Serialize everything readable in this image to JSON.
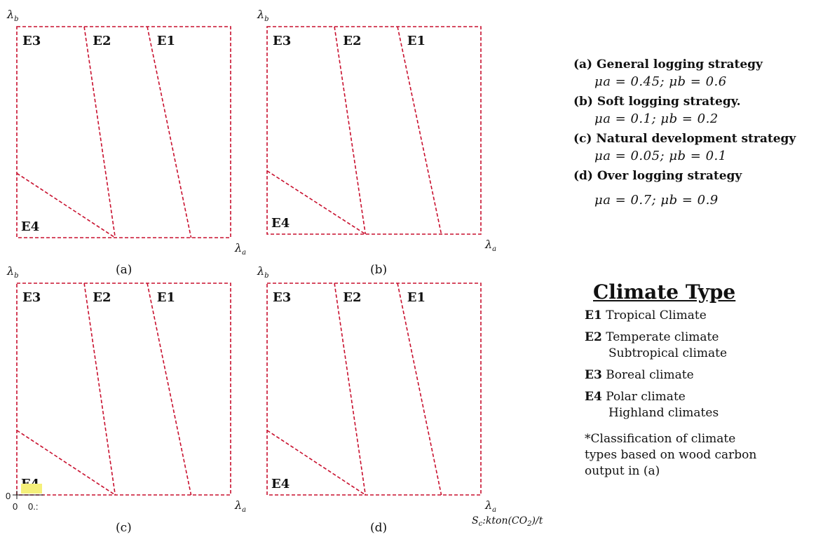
{
  "axes": {
    "x_label": "λ",
    "x_sub": "a",
    "y_label": "λ",
    "y_sub": "b"
  },
  "regions": [
    "E1",
    "E2",
    "E3",
    "E4"
  ],
  "panels": [
    {
      "caption": "(a)"
    },
    {
      "caption": "(b)"
    },
    {
      "caption": "(c)"
    },
    {
      "caption": "(d)"
    }
  ],
  "overlay": {
    "tick_y": "0",
    "tick_x0": "0",
    "tick_x1": "0.:",
    "unit_label": "S_c:kton(CO_2)/t"
  },
  "strategies": [
    {
      "title": "(a) General logging strategy",
      "params": "μa = 0.45; μb = 0.6"
    },
    {
      "title": "(b) Soft logging strategy.",
      "params": "μa = 0.1; μb = 0.2"
    },
    {
      "title": "(c) Natural development strategy",
      "params": "μa = 0.05; μb = 0.1"
    },
    {
      "title": "(d) Over logging strategy",
      "params": "μa = 0.7; μb = 0.9"
    }
  ],
  "climate": {
    "title": "Climate Type",
    "items": [
      {
        "code": "E1",
        "line1": "Tropical Climate",
        "line2": ""
      },
      {
        "code": "E2",
        "line1": "Temperate climate",
        "line2": "Subtropical climate"
      },
      {
        "code": "E3",
        "line1": "Boreal climate",
        "line2": ""
      },
      {
        "code": "E4",
        "line1": "Polar climate",
        "line2": "Highland climates"
      }
    ],
    "note_line1": "*Classification of climate",
    "note_line2": "types based on wood carbon",
    "note_line3": "output in (a)"
  },
  "colors": {
    "boundary": "#c8102e",
    "highlight": "#f5f07a"
  }
}
